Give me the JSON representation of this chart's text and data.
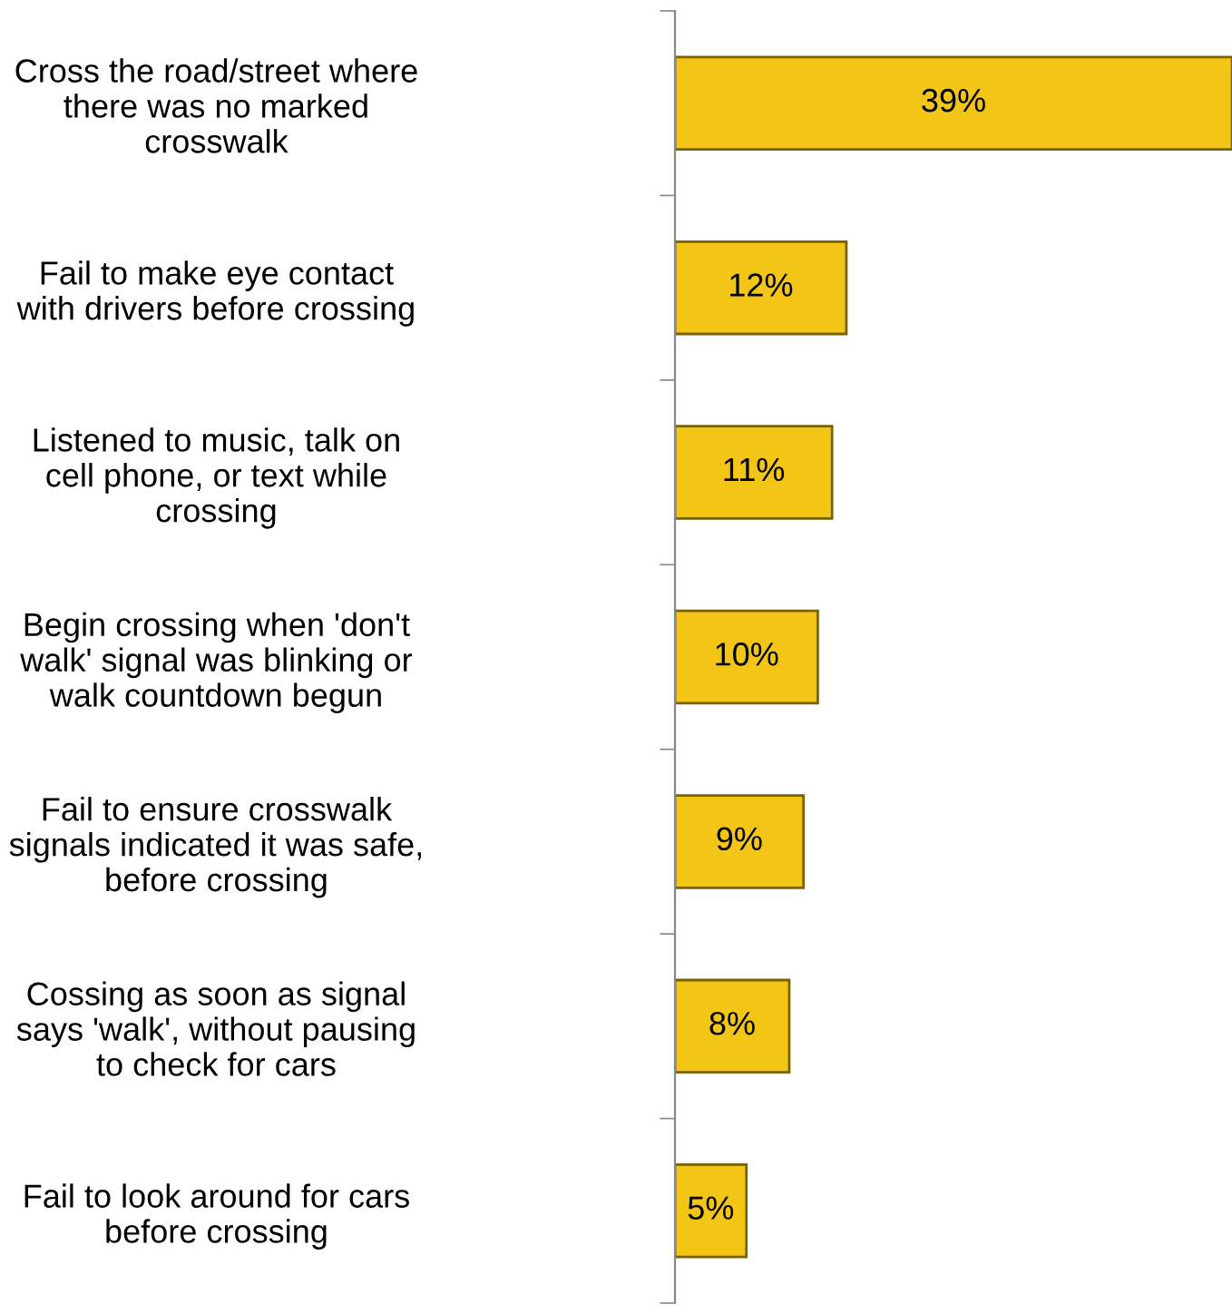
{
  "chart_data": {
    "type": "bar",
    "orientation": "horizontal",
    "categories": [
      "Cross the road/street where\nthere was no marked\ncrosswalk",
      "Fail to make eye contact\nwith drivers before crossing",
      "Listened to music, talk on\ncell phone, or text while\ncrossing",
      "Begin crossing when 'don't\nwalk' signal was blinking or\nwalk countdown begun",
      "Fail to ensure crosswalk\nsignals indicated it was safe,\nbefore crossing",
      "Cossing as soon as signal\nsays 'walk', without pausing\nto check for cars",
      "Fail to look around for cars\nbefore crossing"
    ],
    "values": [
      39,
      12,
      11,
      10,
      9,
      8,
      5
    ],
    "value_labels": [
      "39%",
      "12%",
      "11%",
      "10%",
      "9%",
      "8%",
      "5%"
    ],
    "color": "#f2c516",
    "grid": false,
    "legend": false
  }
}
